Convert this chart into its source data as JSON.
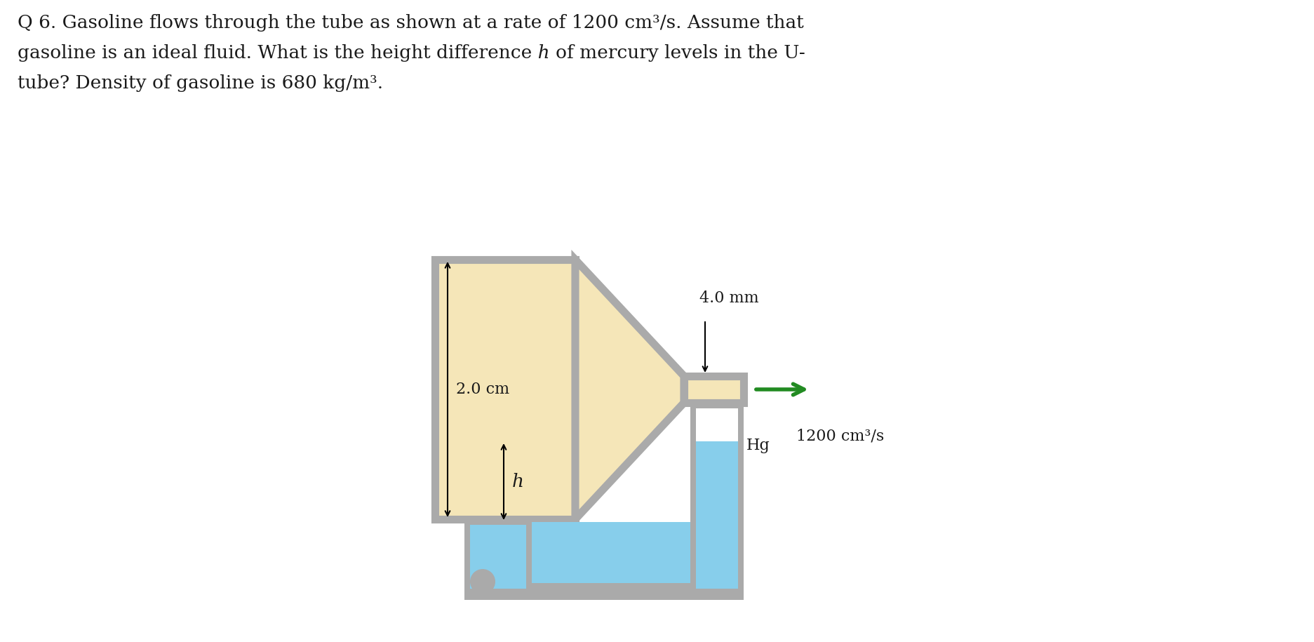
{
  "bg_color": "#ffffff",
  "text_color": "#1a1a1a",
  "fluid_fill": "#f5e6b8",
  "tube_wall_color": "#aaaaaa",
  "tube_border_color": "#888888",
  "mercury_fill": "#87CEEB",
  "arrow_color": "#228B22",
  "question_text_line1": "Q 6. Gasoline flows through the tube as shown at a rate of 1200 cm³/s. Assume that",
  "question_text_line2": "gasoline is an ideal fluid. What is the height difference ℎ of mercury levels in the U-",
  "question_text_line3": "tube? Density of gasoline is 680 kg/m³.",
  "label_2cm": "2.0 cm",
  "label_4mm": "4.0 mm",
  "label_flow": "1200 cm³/s",
  "label_h": "h",
  "label_hg": "Hg",
  "font_size_question": 19,
  "font_size_labels": 15
}
